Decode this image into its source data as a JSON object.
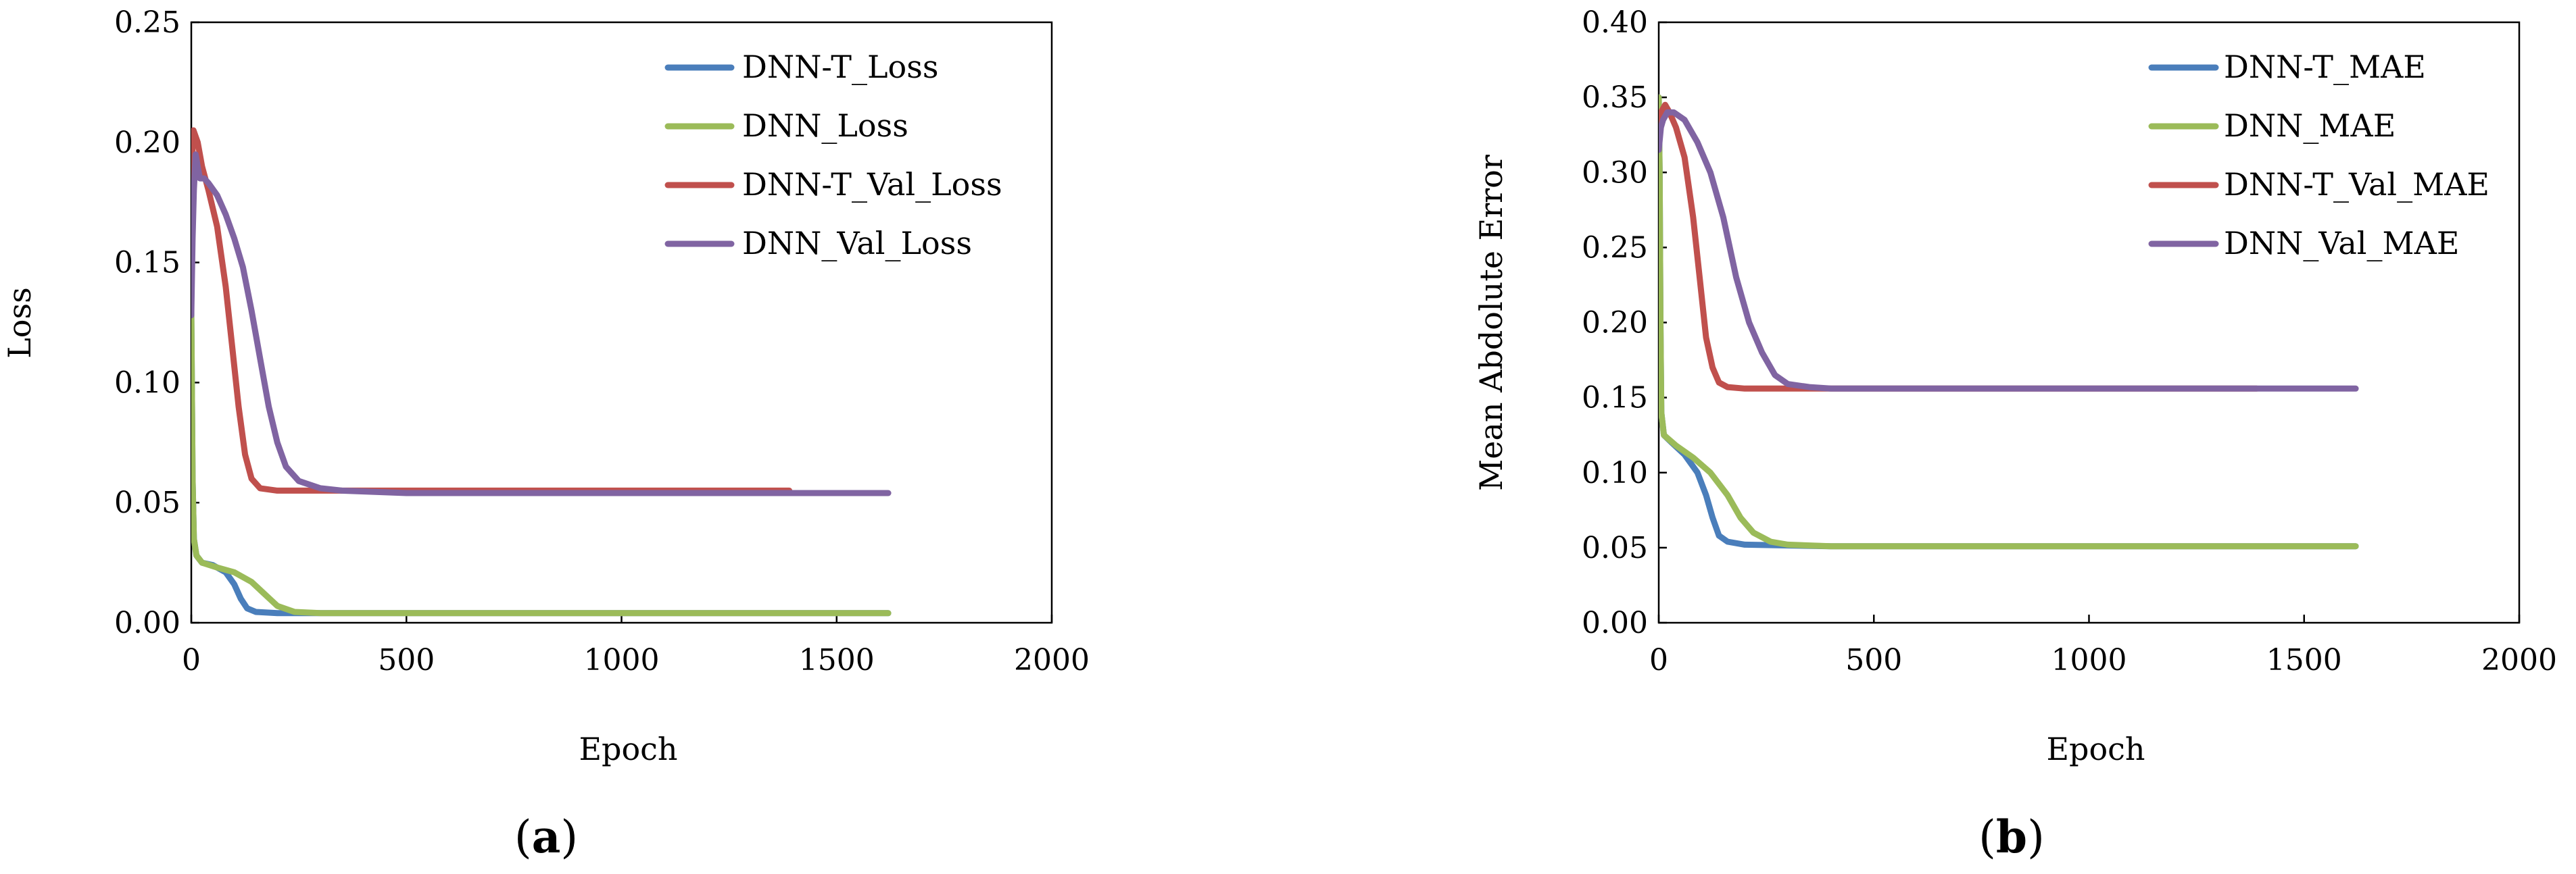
{
  "figure": {
    "panels": [
      {
        "label_open": "(",
        "label_letter": "a",
        "label_close": ")"
      },
      {
        "label_open": "(",
        "label_letter": "b",
        "label_close": ")"
      }
    ]
  },
  "chart_data": [
    {
      "type": "line",
      "title": "",
      "xlabel": "Epoch",
      "ylabel": "Loss",
      "xlim": [
        0,
        2000
      ],
      "ylim": [
        0,
        0.25
      ],
      "xticks": [
        0,
        500,
        1000,
        1500,
        2000
      ],
      "yticks": [
        0,
        0.05,
        0.1,
        0.15,
        0.2,
        0.25
      ],
      "x_tick_labels": [
        "0",
        "500",
        "1000",
        "1500",
        "2000"
      ],
      "y_tick_labels": [
        "0.00",
        "0.05",
        "0.10",
        "0.15",
        "0.20",
        "0.25"
      ],
      "grid": false,
      "legend_position": "top-right",
      "series": [
        {
          "name": "DNN-T_Loss",
          "color": "#4a7ebb",
          "points": [
            [
              0,
              0.13
            ],
            [
              3,
              0.06
            ],
            [
              6,
              0.035
            ],
            [
              12,
              0.028
            ],
            [
              25,
              0.025
            ],
            [
              50,
              0.024
            ],
            [
              80,
              0.021
            ],
            [
              100,
              0.016
            ],
            [
              115,
              0.01
            ],
            [
              130,
              0.006
            ],
            [
              150,
              0.0045
            ],
            [
              200,
              0.004
            ],
            [
              400,
              0.004
            ],
            [
              1000,
              0.004
            ],
            [
              1620,
              0.004
            ]
          ]
        },
        {
          "name": "DNN_Loss",
          "color": "#9bbb59",
          "points": [
            [
              0,
              0.13
            ],
            [
              3,
              0.06
            ],
            [
              6,
              0.035
            ],
            [
              12,
              0.028
            ],
            [
              25,
              0.025
            ],
            [
              60,
              0.023
            ],
            [
              100,
              0.021
            ],
            [
              140,
              0.017
            ],
            [
              170,
              0.012
            ],
            [
              200,
              0.007
            ],
            [
              240,
              0.0045
            ],
            [
              300,
              0.004
            ],
            [
              600,
              0.004
            ],
            [
              1000,
              0.004
            ],
            [
              1620,
              0.004
            ]
          ]
        },
        {
          "name": "DNN-T_Val_Loss",
          "color": "#c0504d",
          "points": [
            [
              0,
              0.185
            ],
            [
              5,
              0.205
            ],
            [
              15,
              0.2
            ],
            [
              25,
              0.19
            ],
            [
              40,
              0.18
            ],
            [
              60,
              0.165
            ],
            [
              80,
              0.14
            ],
            [
              95,
              0.115
            ],
            [
              110,
              0.09
            ],
            [
              125,
              0.07
            ],
            [
              140,
              0.06
            ],
            [
              160,
              0.056
            ],
            [
              200,
              0.055
            ],
            [
              400,
              0.055
            ],
            [
              1000,
              0.055
            ],
            [
              1390,
              0.055
            ]
          ]
        },
        {
          "name": "DNN_Val_Loss",
          "color": "#8064a2",
          "points": [
            [
              0,
              0.128
            ],
            [
              3,
              0.16
            ],
            [
              6,
              0.18
            ],
            [
              10,
              0.195
            ],
            [
              15,
              0.19
            ],
            [
              20,
              0.185
            ],
            [
              30,
              0.185
            ],
            [
              40,
              0.183
            ],
            [
              60,
              0.178
            ],
            [
              80,
              0.17
            ],
            [
              100,
              0.16
            ],
            [
              120,
              0.148
            ],
            [
              140,
              0.13
            ],
            [
              160,
              0.11
            ],
            [
              180,
              0.09
            ],
            [
              200,
              0.075
            ],
            [
              220,
              0.065
            ],
            [
              250,
              0.059
            ],
            [
              300,
              0.056
            ],
            [
              350,
              0.055
            ],
            [
              500,
              0.054
            ],
            [
              1000,
              0.054
            ],
            [
              1620,
              0.054
            ]
          ]
        }
      ]
    },
    {
      "type": "line",
      "title": "",
      "xlabel": "Epoch",
      "ylabel": "Mean Abdolute Error",
      "xlim": [
        0,
        2000
      ],
      "ylim": [
        0,
        0.4
      ],
      "xticks": [
        0,
        500,
        1000,
        1500,
        2000
      ],
      "yticks": [
        0,
        0.05,
        0.1,
        0.15,
        0.2,
        0.25,
        0.3,
        0.35,
        0.4
      ],
      "x_tick_labels": [
        "0",
        "500",
        "1000",
        "1500",
        "2000"
      ],
      "y_tick_labels": [
        "0.00",
        "0.05",
        "0.10",
        "0.15",
        "0.20",
        "0.25",
        "0.30",
        "0.35",
        "0.40"
      ],
      "grid": false,
      "legend_position": "top-right",
      "series": [
        {
          "name": "DNN-T_MAE",
          "color": "#4a7ebb",
          "points": [
            [
              0,
              0.35
            ],
            [
              2,
              0.3
            ],
            [
              4,
              0.2
            ],
            [
              6,
              0.14
            ],
            [
              12,
              0.125
            ],
            [
              30,
              0.12
            ],
            [
              60,
              0.112
            ],
            [
              90,
              0.1
            ],
            [
              110,
              0.085
            ],
            [
              125,
              0.07
            ],
            [
              140,
              0.058
            ],
            [
              160,
              0.054
            ],
            [
              200,
              0.052
            ],
            [
              400,
              0.051
            ],
            [
              1000,
              0.051
            ],
            [
              1620,
              0.051
            ]
          ]
        },
        {
          "name": "DNN_MAE",
          "color": "#9bbb59",
          "points": [
            [
              0,
              0.35
            ],
            [
              2,
              0.3
            ],
            [
              4,
              0.2
            ],
            [
              6,
              0.14
            ],
            [
              12,
              0.125
            ],
            [
              40,
              0.118
            ],
            [
              80,
              0.11
            ],
            [
              120,
              0.1
            ],
            [
              160,
              0.085
            ],
            [
              190,
              0.07
            ],
            [
              220,
              0.06
            ],
            [
              260,
              0.054
            ],
            [
              300,
              0.052
            ],
            [
              400,
              0.051
            ],
            [
              1000,
              0.051
            ],
            [
              1620,
              0.051
            ]
          ]
        },
        {
          "name": "DNN-T_Val_MAE",
          "color": "#c0504d",
          "points": [
            [
              0,
              0.32
            ],
            [
              5,
              0.34
            ],
            [
              15,
              0.345
            ],
            [
              25,
              0.34
            ],
            [
              40,
              0.33
            ],
            [
              60,
              0.31
            ],
            [
              80,
              0.27
            ],
            [
              95,
              0.23
            ],
            [
              110,
              0.19
            ],
            [
              125,
              0.17
            ],
            [
              140,
              0.16
            ],
            [
              160,
              0.157
            ],
            [
              200,
              0.156
            ],
            [
              400,
              0.156
            ],
            [
              1000,
              0.156
            ],
            [
              1390,
              0.156
            ]
          ]
        },
        {
          "name": "DNN_Val_MAE",
          "color": "#8064a2",
          "points": [
            [
              0,
              0.315
            ],
            [
              5,
              0.33
            ],
            [
              10,
              0.335
            ],
            [
              20,
              0.34
            ],
            [
              35,
              0.34
            ],
            [
              60,
              0.335
            ],
            [
              90,
              0.32
            ],
            [
              120,
              0.3
            ],
            [
              150,
              0.27
            ],
            [
              180,
              0.23
            ],
            [
              210,
              0.2
            ],
            [
              240,
              0.18
            ],
            [
              270,
              0.165
            ],
            [
              300,
              0.159
            ],
            [
              350,
              0.157
            ],
            [
              400,
              0.156
            ],
            [
              1000,
              0.156
            ],
            [
              1620,
              0.156
            ]
          ]
        }
      ]
    }
  ]
}
